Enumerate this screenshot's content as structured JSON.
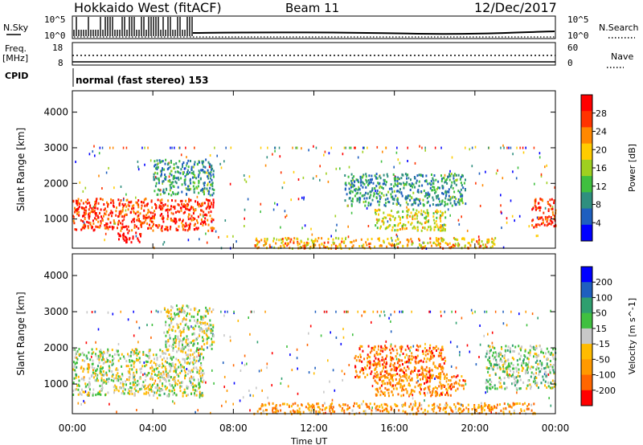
{
  "header": {
    "station": "Hokkaido West (fitACF)",
    "beam": "Beam 11",
    "date": "12/Dec/2017"
  },
  "strip_labels": {
    "nsky": "N.Sky",
    "nsearch": "N.Search",
    "freq": "Freq.",
    "freq_unit": "[MHz]",
    "cpid": "CPID",
    "nave": "Nave",
    "noise_left_top": "10^5",
    "noise_left_bottom": "10^0",
    "noise_right_top": "10^5",
    "noise_right_bottom": "10^0",
    "freq_top": "18",
    "freq_bottom": "8",
    "nave_top": "60",
    "nave_bottom": "0",
    "cpid_text": "normal (fast stereo) 153"
  },
  "chart_data": [
    {
      "type": "heatmap",
      "name": "Power",
      "ylabel": "Slant Range [km]",
      "xlabel": "",
      "colorbar_label": "Power [dB]",
      "colorbar_ticks": [
        "28",
        "24",
        "20",
        "16",
        "12",
        "8",
        "4"
      ],
      "ylim": [
        180,
        4600
      ],
      "yticks": [
        "4000",
        "3000",
        "2000",
        "1000"
      ],
      "xlim": [
        0,
        24
      ],
      "xticks": [
        "00:00",
        "04:00",
        "08:00",
        "12:00",
        "16:00",
        "20:00",
        "00:00"
      ],
      "colors": [
        "#0000ff",
        "#1f5fbf",
        "#2f8f7f",
        "#3fbf3f",
        "#9fd020",
        "#ffcc00",
        "#ff8800",
        "#ff3300",
        "#ff0000"
      ],
      "regions": [
        {
          "t0": 0.0,
          "t1": 7.0,
          "r0": 700,
          "r1": 1600,
          "level": 0.85
        },
        {
          "t0": 2.2,
          "t1": 3.4,
          "r0": 350,
          "r1": 650,
          "level": 0.95
        },
        {
          "t0": 4.0,
          "t1": 7.0,
          "r0": 1700,
          "r1": 2700,
          "level": 0.3
        },
        {
          "t0": 13.5,
          "t1": 19.5,
          "r0": 1400,
          "r1": 2300,
          "level": 0.3
        },
        {
          "t0": 15.0,
          "t1": 18.5,
          "r0": 700,
          "r1": 1300,
          "level": 0.55
        },
        {
          "t0": 22.8,
          "t1": 24.0,
          "r0": 800,
          "r1": 1600,
          "level": 0.85
        },
        {
          "t0": 9.0,
          "t1": 21.0,
          "r0": 200,
          "r1": 500,
          "level": 0.65
        }
      ]
    },
    {
      "type": "heatmap",
      "name": "Velocity",
      "ylabel": "Slant Range [km]",
      "xlabel": "Time UT",
      "colorbar_label": "Velocity [m s^-1]",
      "colorbar_ticks": [
        "200",
        "100",
        "50",
        "15",
        "-15",
        "-50",
        "-100",
        "-200"
      ],
      "ylim": [
        180,
        4600
      ],
      "yticks": [
        "4000",
        "3000",
        "2000",
        "1000"
      ],
      "xlim": [
        0,
        24
      ],
      "xticks": [
        "00:00",
        "04:00",
        "08:00",
        "12:00",
        "16:00",
        "20:00",
        "00:00"
      ],
      "colors": [
        "#ff0000",
        "#ff6600",
        "#ff9900",
        "#ffbb00",
        "#c8c8c8",
        "#40c040",
        "#2f9f6f",
        "#1f5fbf",
        "#0000ff"
      ],
      "regions": [
        {
          "t0": 0.0,
          "t1": 6.5,
          "r0": 700,
          "r1": 2000,
          "level": 0.5
        },
        {
          "t0": 4.5,
          "t1": 7.0,
          "r0": 2000,
          "r1": 3200,
          "level": 0.5
        },
        {
          "t0": 14.0,
          "t1": 18.5,
          "r0": 1200,
          "r1": 2100,
          "level": 0.2
        },
        {
          "t0": 15.0,
          "t1": 19.5,
          "r0": 700,
          "r1": 1300,
          "level": 0.25
        },
        {
          "t0": 20.5,
          "t1": 24.0,
          "r0": 900,
          "r1": 2100,
          "level": 0.55
        },
        {
          "t0": 9.0,
          "t1": 23.0,
          "r0": 200,
          "r1": 500,
          "level": 0.3
        }
      ]
    }
  ]
}
